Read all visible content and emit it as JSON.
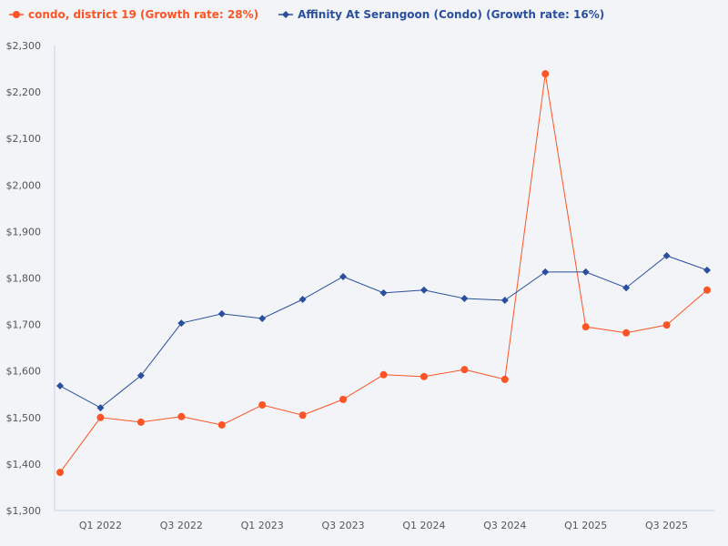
{
  "chart_data": {
    "type": "line",
    "title": "",
    "xlabel": "",
    "ylabel": "",
    "ylim": [
      1300,
      2300
    ],
    "y_ticks": [
      1300,
      1400,
      1500,
      1600,
      1700,
      1800,
      1900,
      2000,
      2100,
      2200,
      2300
    ],
    "y_tick_labels": [
      "$1,300",
      "$1,400",
      "$1,500",
      "$1,600",
      "$1,700",
      "$1,800",
      "$1,900",
      "$2,000",
      "$2,100",
      "$2,200",
      "$2,300"
    ],
    "categories": [
      "Q4 2021",
      "Q1 2022",
      "Q2 2022",
      "Q3 2022",
      "Q4 2022",
      "Q1 2023",
      "Q2 2023",
      "Q3 2023",
      "Q4 2023",
      "Q1 2024",
      "Q2 2024",
      "Q3 2024",
      "Q4 2024",
      "Q1 2025",
      "Q2 2025",
      "Q3 2025",
      "Q4 2025"
    ],
    "x_tick_labels": [
      {
        "index": 1,
        "label": "Q1 2022"
      },
      {
        "index": 3,
        "label": "Q3 2022"
      },
      {
        "index": 5,
        "label": "Q1 2023"
      },
      {
        "index": 7,
        "label": "Q3 2023"
      },
      {
        "index": 9,
        "label": "Q1 2024"
      },
      {
        "index": 11,
        "label": "Q3 2024"
      },
      {
        "index": 13,
        "label": "Q1 2025"
      },
      {
        "index": 15,
        "label": "Q3 2025"
      }
    ],
    "grid": false,
    "legend_position": "top-left",
    "series": [
      {
        "name": "condo, district 19 (Growth rate: 28%)",
        "color": "#fc5424",
        "marker": "circle",
        "values": [
          1382,
          1500,
          1490,
          1502,
          1484,
          1527,
          1505,
          1539,
          1592,
          1588,
          1603,
          1582,
          2239,
          1695,
          1682,
          1699,
          1774
        ]
      },
      {
        "name": "Affinity At Serangoon (Condo) (Growth rate: 16%)",
        "color": "#2a4f9e",
        "marker": "diamond",
        "values": [
          1568,
          1521,
          1590,
          1703,
          1723,
          1713,
          1754,
          1803,
          1768,
          1774,
          1756,
          1752,
          1813,
          1813,
          1779,
          1848,
          1817
        ]
      }
    ]
  }
}
